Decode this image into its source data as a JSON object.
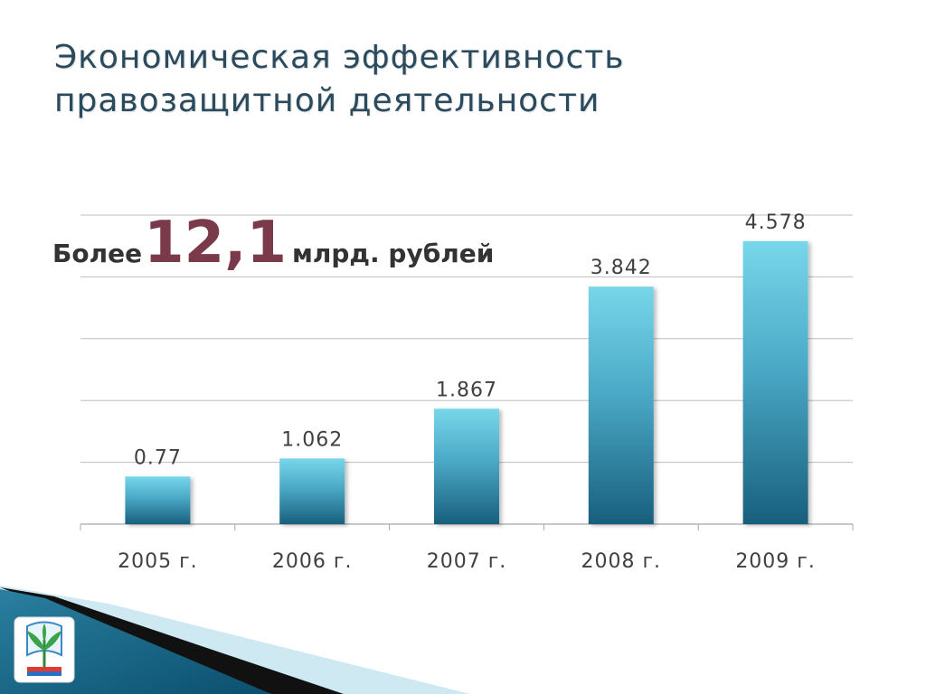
{
  "slide": {
    "title_line1": "Экономическая эффективность",
    "title_line2": "правозащитной деятельности"
  },
  "headline": {
    "lead": "Более",
    "value": "12,1",
    "unit": "млрд. рублей"
  },
  "colors": {
    "title": "#2a4a5e",
    "headline_value": "#7b3a4a",
    "bar_top": "#78d6ea",
    "bar_bottom": "#185f7d",
    "gridline": "#bdbdbd"
  },
  "chart_data": {
    "type": "bar",
    "categories": [
      "2005 г.",
      "2006 г.",
      "2007 г.",
      "2008 г.",
      "2009 г."
    ],
    "values": [
      0.77,
      1.062,
      1.867,
      3.842,
      4.578
    ],
    "data_labels": [
      "0.77",
      "1.062",
      "1.867",
      "3.842",
      "4.578"
    ],
    "ylim": [
      0,
      5
    ],
    "y_gridline_step": 1,
    "grid": true,
    "y_tick_labels_visible": false,
    "legend": "none"
  }
}
